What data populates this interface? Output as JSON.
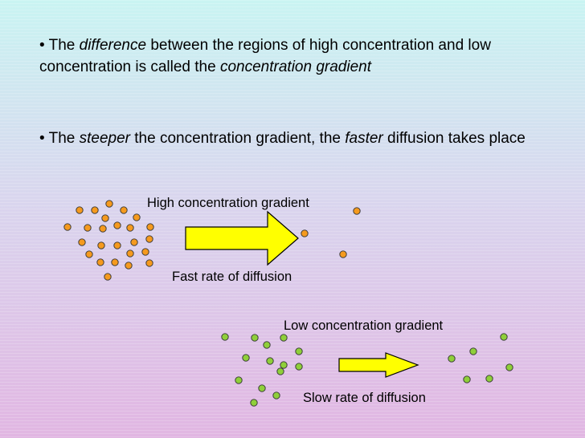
{
  "bullets": [
    {
      "marker": "•",
      "parts": [
        "The ",
        "difference",
        " between the regions of high concentration and low concentration is called the ",
        "concentration gradient"
      ]
    },
    {
      "marker": "•",
      "parts": [
        "The ",
        "steeper",
        " the concentration gradient, the ",
        "faster",
        " diffusion takes place"
      ]
    }
  ],
  "high": {
    "title": "High concentration gradient",
    "rate": "Fast rate of diffusion",
    "particle_color": "#f59a1e"
  },
  "low": {
    "title": "Low concentration gradient",
    "rate": "Slow rate of diffusion",
    "particle_color": "#8fcf3a"
  },
  "colors": {
    "arrow_fill": "#ffff00",
    "outline": "#000000"
  }
}
